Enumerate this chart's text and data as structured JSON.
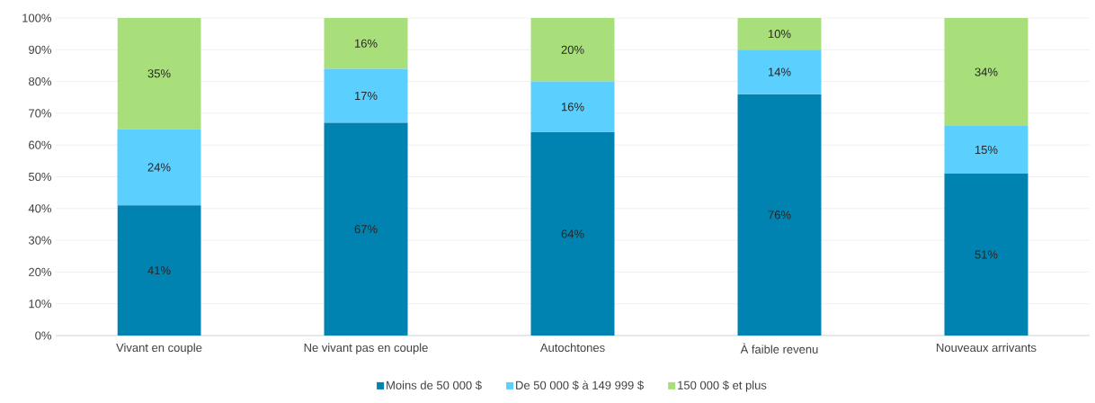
{
  "chart_data": {
    "type": "bar",
    "stacked": true,
    "categories": [
      "Vivant en couple",
      "Ne vivant pas en couple",
      "Autochtones",
      "À faible revenu",
      "Nouveaux arrivants"
    ],
    "series": [
      {
        "name": "Moins de 50 000 $",
        "color": "#0083b0",
        "values": [
          41,
          67,
          64,
          76,
          51
        ],
        "value_labels": [
          "41%",
          "67%",
          "64%",
          "76%",
          "51%"
        ]
      },
      {
        "name": "De 50 000 $ à 149 999 $",
        "color": "#5bd0ff",
        "values": [
          24,
          17,
          16,
          14,
          15
        ],
        "value_labels": [
          "24%",
          "17%",
          "16%",
          "14%",
          "15%"
        ]
      },
      {
        "name": "150 000 $ et plus",
        "color": "#a9df7a",
        "values": [
          35,
          16,
          20,
          10,
          34
        ],
        "value_labels": [
          "35%",
          "16%",
          "20%",
          "10%",
          "34%"
        ]
      }
    ],
    "ylim": [
      0,
      100
    ],
    "yticks": [
      {
        "value": 0,
        "label": "0%"
      },
      {
        "value": 10,
        "label": "10%"
      },
      {
        "value": 20,
        "label": "20%"
      },
      {
        "value": 30,
        "label": "30%"
      },
      {
        "value": 40,
        "label": "40%"
      },
      {
        "value": 50,
        "label": "50%"
      },
      {
        "value": 60,
        "label": "60%"
      },
      {
        "value": 70,
        "label": "70%"
      },
      {
        "value": 80,
        "label": "80%"
      },
      {
        "value": 90,
        "label": "90%"
      },
      {
        "value": 100,
        "label": "100%"
      }
    ],
    "grid": "y",
    "legend": "bottom"
  }
}
